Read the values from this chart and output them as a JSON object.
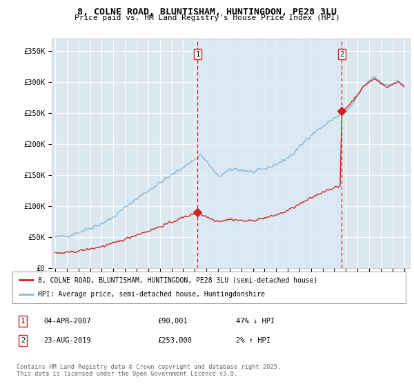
{
  "title": "8, COLNE ROAD, BLUNTISHAM, HUNTINGDON, PE28 3LU",
  "subtitle": "Price paid vs. HM Land Registry's House Price Index (HPI)",
  "ylabel_ticks": [
    "£0",
    "£50K",
    "£100K",
    "£150K",
    "£200K",
    "£250K",
    "£300K",
    "£350K"
  ],
  "ytick_vals": [
    0,
    50000,
    100000,
    150000,
    200000,
    250000,
    300000,
    350000
  ],
  "ylim": [
    0,
    370000
  ],
  "xlim_start": 1994.7,
  "xlim_end": 2025.5,
  "hpi_color": "#8ab4d4",
  "hpi_shade_color": "#d8e8f4",
  "price_color": "#cc2222",
  "bg_color": "#dce8f0",
  "grid_color": "#ffffff",
  "marker1_year": 2007.25,
  "marker2_year": 2019.65,
  "marker1_price": 90001,
  "marker2_price": 253000,
  "legend_line1": "8, COLNE ROAD, BLUNTISHAM, HUNTINGDON, PE28 3LU (semi-detached house)",
  "legend_line2": "HPI: Average price, semi-detached house, Huntingdonshire",
  "table_row1": [
    "1",
    "04-APR-2007",
    "£90,001",
    "47% ↓ HPI"
  ],
  "table_row2": [
    "2",
    "23-AUG-2019",
    "£253,000",
    "2% ↑ HPI"
  ],
  "footnote": "Contains HM Land Registry data © Crown copyright and database right 2025.\nThis data is licensed under the Open Government Licence v3.0.",
  "xtick_years": [
    1995,
    1996,
    1997,
    1998,
    1999,
    2000,
    2001,
    2002,
    2003,
    2004,
    2005,
    2006,
    2007,
    2008,
    2009,
    2010,
    2011,
    2012,
    2013,
    2014,
    2015,
    2016,
    2017,
    2018,
    2019,
    2020,
    2021,
    2022,
    2023,
    2024,
    2025
  ],
  "hpi_keypoints_x": [
    1995,
    1996,
    1997,
    1998,
    1999,
    2000,
    2001,
    2002,
    2003,
    2004,
    2005,
    2006,
    2007,
    2007.5,
    2008,
    2008.5,
    2009,
    2009.5,
    2010,
    2010.5,
    2011,
    2011.5,
    2012,
    2012.5,
    2013,
    2013.5,
    2014,
    2014.5,
    2015,
    2015.5,
    2016,
    2016.5,
    2017,
    2017.5,
    2018,
    2018.5,
    2019,
    2019.5,
    2020,
    2020.5,
    2021,
    2021.5,
    2022,
    2022.5,
    2023,
    2023.5,
    2024,
    2024.5,
    2025
  ],
  "hpi_keypoints_y": [
    50000,
    52000,
    58000,
    65000,
    72000,
    82000,
    98000,
    112000,
    125000,
    138000,
    150000,
    163000,
    175000,
    183000,
    172000,
    160000,
    148000,
    152000,
    158000,
    160000,
    158000,
    157000,
    155000,
    157000,
    160000,
    163000,
    168000,
    172000,
    178000,
    185000,
    195000,
    205000,
    215000,
    222000,
    228000,
    235000,
    242000,
    248000,
    253000,
    262000,
    278000,
    292000,
    302000,
    308000,
    300000,
    295000,
    298000,
    302000,
    295000
  ],
  "red_keypoints_x": [
    1995,
    1996,
    1997,
    1998,
    1999,
    2000,
    2001,
    2002,
    2003,
    2004,
    2005,
    2006,
    2007,
    2007.25,
    2007.5,
    2008,
    2008.5,
    2009,
    2009.5,
    2010,
    2010.5,
    2011,
    2011.5,
    2012,
    2012.5,
    2013,
    2013.5,
    2014,
    2014.5,
    2015,
    2015.5,
    2016,
    2016.5,
    2017,
    2017.5,
    2018,
    2018.5,
    2019,
    2019.5,
    2019.65,
    2020,
    2020.5,
    2021,
    2021.5,
    2022,
    2022.5,
    2023,
    2023.5,
    2024,
    2024.5,
    2025
  ],
  "red_keypoints_y": [
    24000,
    25000,
    28000,
    31000,
    35000,
    40000,
    47000,
    54000,
    60000,
    67000,
    74000,
    82000,
    88000,
    90001,
    87000,
    83000,
    79000,
    76000,
    77000,
    79000,
    78000,
    77000,
    76000,
    77000,
    79000,
    81000,
    83000,
    86000,
    89000,
    93000,
    98000,
    103000,
    108000,
    113000,
    118000,
    123000,
    127000,
    130000,
    131000,
    253000,
    258000,
    268000,
    280000,
    292000,
    300000,
    305000,
    298000,
    292000,
    296000,
    300000,
    293000
  ]
}
